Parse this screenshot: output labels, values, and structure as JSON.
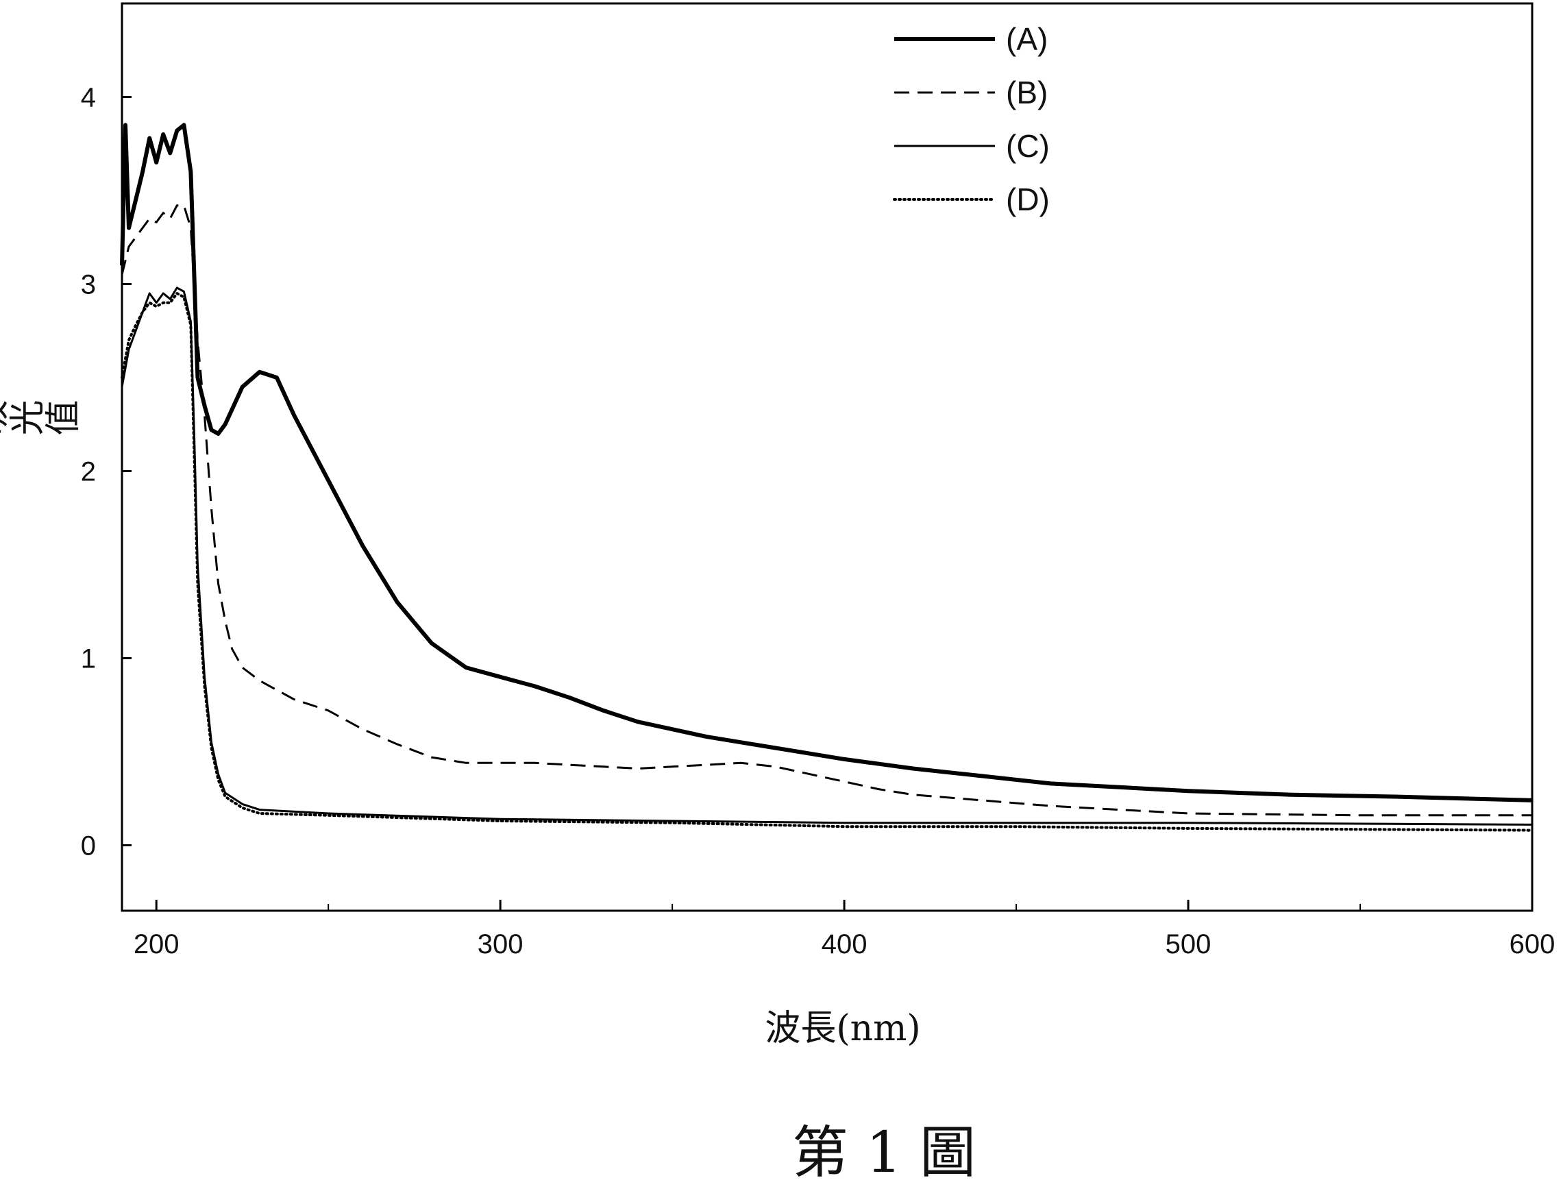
{
  "figure_caption": "第 1 圖",
  "chart_data": {
    "type": "line",
    "title": "",
    "xlabel": "波長(nm)",
    "ylabel": "吸光值",
    "xlim": [
      190,
      600
    ],
    "ylim": [
      -0.35,
      4.5
    ],
    "xticks": [
      200,
      300,
      400,
      500,
      600
    ],
    "xticks_minor": [
      250,
      350,
      450,
      550
    ],
    "yticks": [
      0,
      1,
      2,
      3,
      4
    ],
    "grid": false,
    "legend_position": "top-right",
    "series": [
      {
        "name": "(A)",
        "style": "solid-thick",
        "color": "#000000",
        "points": [
          [
            190,
            3.1
          ],
          [
            191,
            3.85
          ],
          [
            192,
            3.3
          ],
          [
            194,
            3.45
          ],
          [
            196,
            3.6
          ],
          [
            198,
            3.78
          ],
          [
            200,
            3.65
          ],
          [
            202,
            3.8
          ],
          [
            204,
            3.7
          ],
          [
            206,
            3.82
          ],
          [
            208,
            3.85
          ],
          [
            210,
            3.6
          ],
          [
            212,
            2.5
          ],
          [
            214,
            2.35
          ],
          [
            216,
            2.22
          ],
          [
            218,
            2.2
          ],
          [
            220,
            2.25
          ],
          [
            225,
            2.45
          ],
          [
            230,
            2.53
          ],
          [
            235,
            2.5
          ],
          [
            240,
            2.3
          ],
          [
            250,
            1.95
          ],
          [
            260,
            1.6
          ],
          [
            270,
            1.3
          ],
          [
            280,
            1.08
          ],
          [
            290,
            0.95
          ],
          [
            300,
            0.9
          ],
          [
            310,
            0.85
          ],
          [
            320,
            0.79
          ],
          [
            330,
            0.72
          ],
          [
            340,
            0.66
          ],
          [
            350,
            0.62
          ],
          [
            360,
            0.58
          ],
          [
            370,
            0.55
          ],
          [
            380,
            0.52
          ],
          [
            390,
            0.49
          ],
          [
            400,
            0.46
          ],
          [
            420,
            0.41
          ],
          [
            440,
            0.37
          ],
          [
            460,
            0.33
          ],
          [
            480,
            0.31
          ],
          [
            500,
            0.29
          ],
          [
            530,
            0.27
          ],
          [
            560,
            0.26
          ],
          [
            600,
            0.24
          ]
        ]
      },
      {
        "name": "(B)",
        "style": "dashed",
        "color": "#000000",
        "points": [
          [
            190,
            3.05
          ],
          [
            192,
            3.2
          ],
          [
            194,
            3.25
          ],
          [
            196,
            3.3
          ],
          [
            198,
            3.35
          ],
          [
            200,
            3.33
          ],
          [
            202,
            3.38
          ],
          [
            204,
            3.35
          ],
          [
            206,
            3.42
          ],
          [
            208,
            3.42
          ],
          [
            210,
            3.3
          ],
          [
            212,
            2.7
          ],
          [
            214,
            2.3
          ],
          [
            216,
            1.8
          ],
          [
            218,
            1.4
          ],
          [
            220,
            1.2
          ],
          [
            222,
            1.05
          ],
          [
            225,
            0.95
          ],
          [
            230,
            0.88
          ],
          [
            240,
            0.78
          ],
          [
            250,
            0.72
          ],
          [
            260,
            0.62
          ],
          [
            270,
            0.54
          ],
          [
            280,
            0.47
          ],
          [
            290,
            0.44
          ],
          [
            300,
            0.44
          ],
          [
            310,
            0.44
          ],
          [
            320,
            0.43
          ],
          [
            330,
            0.42
          ],
          [
            340,
            0.41
          ],
          [
            350,
            0.42
          ],
          [
            360,
            0.43
          ],
          [
            370,
            0.44
          ],
          [
            380,
            0.42
          ],
          [
            390,
            0.38
          ],
          [
            400,
            0.34
          ],
          [
            410,
            0.3
          ],
          [
            420,
            0.27
          ],
          [
            440,
            0.24
          ],
          [
            460,
            0.21
          ],
          [
            480,
            0.19
          ],
          [
            500,
            0.17
          ],
          [
            550,
            0.16
          ],
          [
            600,
            0.16
          ]
        ]
      },
      {
        "name": "(C)",
        "style": "solid-thin",
        "color": "#000000",
        "points": [
          [
            190,
            2.45
          ],
          [
            192,
            2.65
          ],
          [
            194,
            2.75
          ],
          [
            196,
            2.85
          ],
          [
            198,
            2.95
          ],
          [
            200,
            2.9
          ],
          [
            202,
            2.95
          ],
          [
            204,
            2.92
          ],
          [
            206,
            2.98
          ],
          [
            208,
            2.96
          ],
          [
            210,
            2.8
          ],
          [
            211,
            2.2
          ],
          [
            212,
            1.5
          ],
          [
            214,
            0.9
          ],
          [
            216,
            0.55
          ],
          [
            218,
            0.38
          ],
          [
            220,
            0.28
          ],
          [
            225,
            0.22
          ],
          [
            230,
            0.19
          ],
          [
            250,
            0.17
          ],
          [
            300,
            0.14
          ],
          [
            350,
            0.13
          ],
          [
            400,
            0.12
          ],
          [
            500,
            0.12
          ],
          [
            600,
            0.11
          ]
        ]
      },
      {
        "name": "(D)",
        "style": "dotted",
        "color": "#000000",
        "points": [
          [
            190,
            2.5
          ],
          [
            192,
            2.7
          ],
          [
            194,
            2.78
          ],
          [
            196,
            2.85
          ],
          [
            198,
            2.9
          ],
          [
            200,
            2.88
          ],
          [
            202,
            2.9
          ],
          [
            204,
            2.9
          ],
          [
            206,
            2.95
          ],
          [
            208,
            2.93
          ],
          [
            210,
            2.78
          ],
          [
            211,
            2.1
          ],
          [
            212,
            1.4
          ],
          [
            214,
            0.85
          ],
          [
            216,
            0.52
          ],
          [
            218,
            0.35
          ],
          [
            220,
            0.26
          ],
          [
            225,
            0.2
          ],
          [
            230,
            0.17
          ],
          [
            250,
            0.16
          ],
          [
            300,
            0.13
          ],
          [
            350,
            0.12
          ],
          [
            400,
            0.1
          ],
          [
            450,
            0.1
          ],
          [
            500,
            0.09
          ],
          [
            600,
            0.08
          ]
        ]
      }
    ]
  }
}
